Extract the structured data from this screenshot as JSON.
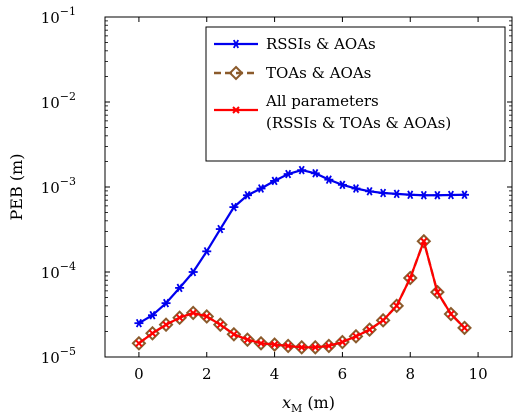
{
  "chart_data": {
    "type": "line",
    "xlabel_var": "x",
    "xlabel_sub": "M",
    "xlabel_unit": "(m)",
    "ylabel": "PEB (m)",
    "xlim": [
      -1,
      11
    ],
    "ylim": [
      1e-05,
      0.1
    ],
    "yscale": "log",
    "x_ticks": [
      0,
      2,
      4,
      6,
      8,
      10
    ],
    "y_ticks": [
      {
        "value": 1e-05,
        "base": "10",
        "exp": "−5"
      },
      {
        "value": 0.0001,
        "base": "10",
        "exp": "−4"
      },
      {
        "value": 0.001,
        "base": "10",
        "exp": "−3"
      },
      {
        "value": 0.01,
        "base": "10",
        "exp": "−2"
      },
      {
        "value": 0.1,
        "base": "10",
        "exp": "−1"
      }
    ],
    "legend_position": "top-right",
    "series": [
      {
        "name": "RSSIs & AOAs",
        "color": "#0000ee",
        "marker": "asterisk",
        "x": [
          0,
          0.4,
          0.8,
          1.2,
          1.6,
          2.0,
          2.4,
          2.8,
          3.2,
          3.6,
          4.0,
          4.4,
          4.8,
          5.2,
          5.6,
          6.0,
          6.4,
          6.8,
          7.2,
          7.6,
          8.0,
          8.4,
          8.8,
          9.2,
          9.6
        ],
        "values": [
          2.5e-05,
          3.1e-05,
          4.3e-05,
          6.5e-05,
          0.0001,
          0.000175,
          0.00032,
          0.00058,
          0.0008,
          0.00096,
          0.00118,
          0.00142,
          0.00158,
          0.00145,
          0.00122,
          0.00106,
          0.00096,
          0.00089,
          0.00085,
          0.00083,
          0.00081,
          0.0008,
          0.0008,
          0.000805,
          0.00081
        ]
      },
      {
        "name": "TOAs & AOAs",
        "color": "#8b5a2b",
        "marker": "diamond",
        "dashed": true,
        "x": [
          0,
          0.4,
          0.8,
          1.2,
          1.6,
          2.0,
          2.4,
          2.8,
          3.2,
          3.6,
          4.0,
          4.4,
          4.8,
          5.2,
          5.6,
          6.0,
          6.4,
          6.8,
          7.2,
          7.6,
          8.0,
          8.4,
          8.8,
          9.2,
          9.6
        ],
        "values": [
          1.45e-05,
          1.9e-05,
          2.4e-05,
          2.9e-05,
          3.3e-05,
          3e-05,
          2.4e-05,
          1.85e-05,
          1.6e-05,
          1.45e-05,
          1.4e-05,
          1.35e-05,
          1.3e-05,
          1.3e-05,
          1.35e-05,
          1.5e-05,
          1.75e-05,
          2.1e-05,
          2.7e-05,
          4e-05,
          8.5e-05,
          0.00023,
          5.8e-05,
          3.2e-05,
          2.2e-05
        ]
      },
      {
        "name_line1": "All parameters",
        "name_line2": "(RSSIs & TOAs & AOAs)",
        "color": "#ff0000",
        "marker": "cross",
        "x": [
          0,
          0.4,
          0.8,
          1.2,
          1.6,
          2.0,
          2.4,
          2.8,
          3.2,
          3.6,
          4.0,
          4.4,
          4.8,
          5.2,
          5.6,
          6.0,
          6.4,
          6.8,
          7.2,
          7.6,
          8.0,
          8.4,
          8.8,
          9.2,
          9.6
        ],
        "values": [
          1.45e-05,
          1.9e-05,
          2.4e-05,
          2.9e-05,
          3.3e-05,
          3e-05,
          2.4e-05,
          1.85e-05,
          1.6e-05,
          1.45e-05,
          1.4e-05,
          1.35e-05,
          1.3e-05,
          1.3e-05,
          1.35e-05,
          1.5e-05,
          1.75e-05,
          2.1e-05,
          2.7e-05,
          4e-05,
          8.5e-05,
          0.00023,
          5.8e-05,
          3.2e-05,
          2.2e-05
        ]
      }
    ]
  }
}
